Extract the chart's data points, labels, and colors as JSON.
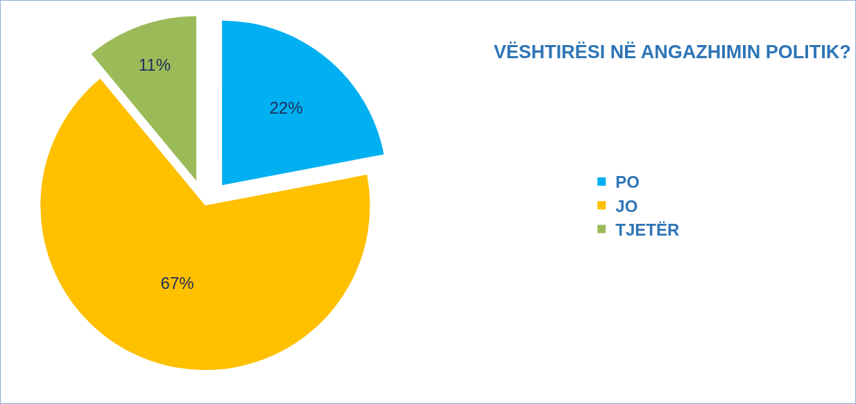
{
  "chart_data": {
    "type": "pie",
    "title": "VËSHTIRËSI NË ANGAZHIMIN POLITIK?",
    "categories": [
      "PO",
      "JO",
      "TJETËR"
    ],
    "values": [
      22,
      67,
      11
    ],
    "colors": [
      "#00b0f0",
      "#ffc000",
      "#9bbb59"
    ],
    "value_labels": [
      "22%",
      "67%",
      "11%"
    ],
    "legend": "right"
  }
}
